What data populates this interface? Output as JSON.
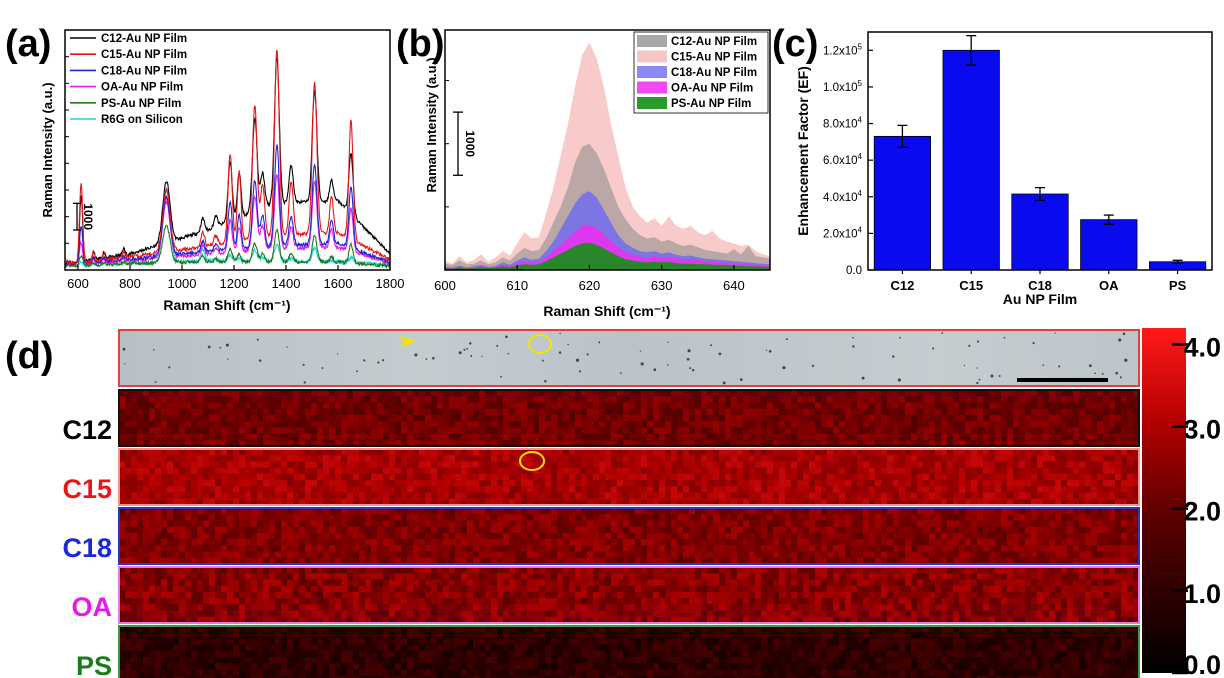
{
  "panel_labels": [
    "(a)",
    "(b)",
    "(c)",
    "(d)"
  ],
  "colors": {
    "C12": "#000000",
    "C15": "#e8161b",
    "C18": "#1b28d6",
    "OA": "#e619e6",
    "PS": "#1e7a1e",
    "R6G": "#18d8d8",
    "bar": "#0a0af0",
    "map_border_optical": "#e33f3f",
    "map_border_C12": "#111111",
    "map_border_C15": "#f29090",
    "map_border_C18": "#2a34c8",
    "map_border_OA": "#e07ae0",
    "map_border_PS": "#3c9a3c",
    "annotation": "#f2e600"
  },
  "chart_data": [
    {
      "panel": "(a)",
      "type": "line",
      "xlabel": "Raman Shift (cm⁻¹)",
      "ylabel": "Raman Intensity (a.u.)",
      "xlim": [
        550,
        1800
      ],
      "xticks": [
        "600",
        "800",
        "1000",
        "1200",
        "1400",
        "1600",
        "1800"
      ],
      "xtick_values": [
        600,
        800,
        1000,
        1200,
        1400,
        1600,
        1800
      ],
      "ylim": [
        0,
        9000
      ],
      "scale_bar_label": "1000",
      "scale_bar_value": 1000,
      "legend": [
        "C12-Au NP Film",
        "C15-Au NP Film",
        "C18-Au NP Film",
        "OA-Au NP Film",
        "PS-Au NP Film",
        "R6G on Silicon"
      ],
      "peaks": [
        560,
        612,
        660,
        700,
        775,
        940,
        1080,
        1130,
        1185,
        1220,
        1280,
        1310,
        1365,
        1420,
        1510,
        1575,
        1650
      ],
      "peak_width": [
        10,
        6,
        5,
        5,
        5,
        14,
        7,
        7,
        8,
        7,
        9,
        8,
        9,
        8,
        9,
        7,
        8
      ],
      "series": [
        {
          "name": "C12-Au NP Film",
          "color_key": "C12",
          "baseline": [
            200,
            600,
            1500,
            2500,
            2600,
            600
          ],
          "amplitudes": [
            100,
            2500,
            300,
            250,
            250,
            2300,
            500,
            400,
            2200,
            1700,
            3500,
            1300,
            5500,
            1400,
            4200,
            800,
            2300
          ]
        },
        {
          "name": "C15-Au NP Film",
          "color_key": "C15",
          "baseline": [
            200,
            500,
            900,
            1300,
            1400,
            400
          ],
          "amplitudes": [
            80,
            3000,
            300,
            250,
            200,
            2300,
            550,
            350,
            3300,
            2600,
            5000,
            2000,
            7000,
            2000,
            5700,
            1400,
            4500
          ]
        },
        {
          "name": "C18-Au NP Film",
          "color_key": "C18",
          "baseline": [
            200,
            400,
            700,
            900,
            1000,
            300
          ],
          "amplitudes": [
            60,
            1400,
            200,
            150,
            150,
            2200,
            400,
            250,
            1800,
            1300,
            2500,
            1200,
            3800,
            1100,
            3000,
            900,
            2300
          ]
        },
        {
          "name": "OA-Au NP Film",
          "color_key": "OA",
          "baseline": [
            200,
            350,
            600,
            800,
            850,
            250
          ],
          "amplitudes": [
            50,
            800,
            150,
            120,
            120,
            2100,
            350,
            200,
            1200,
            900,
            2000,
            900,
            2800,
            800,
            2500,
            700,
            1600
          ]
        },
        {
          "name": "PS-Au NP Film",
          "color_key": "PS",
          "baseline": [
            150,
            250,
            300,
            300,
            300,
            150
          ],
          "amplitudes": [
            40,
            350,
            80,
            60,
            60,
            1400,
            250,
            120,
            500,
            300,
            700,
            300,
            1200,
            300,
            1000,
            200,
            700
          ]
        },
        {
          "name": "R6G on Silicon",
          "color_key": "R6G",
          "baseline": [
            150,
            250,
            350,
            350,
            300,
            200
          ],
          "amplitudes": [
            80,
            150,
            50,
            40,
            40,
            2700,
            450,
            60,
            200,
            100,
            400,
            100,
            600,
            100,
            500,
            60,
            200
          ]
        }
      ]
    },
    {
      "panel": "(b)",
      "type": "area",
      "xlabel": "Raman Shift (cm⁻¹)",
      "ylabel": "Raman Intensity (a.u.)",
      "xlim": [
        600,
        645
      ],
      "xticks": [
        "600",
        "610",
        "620",
        "630",
        "640"
      ],
      "xtick_values": [
        600,
        610,
        620,
        630,
        640
      ],
      "ylim": [
        0,
        3800
      ],
      "scale_bar_label": "1000",
      "scale_bar_value": 1000,
      "legend": [
        "C12-Au NP Film",
        "C15-Au NP Film",
        "C18-Au NP Film",
        "OA-Au NP Film",
        "PS-Au NP Film"
      ],
      "x": [
        600,
        601,
        602,
        603,
        604,
        605,
        606,
        607,
        608,
        609,
        610,
        611,
        612,
        613,
        614,
        615,
        616,
        617,
        618,
        619,
        620,
        621,
        622,
        623,
        624,
        625,
        626,
        627,
        628,
        629,
        630,
        631,
        632,
        633,
        634,
        635,
        636,
        637,
        638,
        639,
        640,
        641,
        642,
        643,
        644,
        645
      ],
      "series": [
        {
          "name": "C15-Au NP Film",
          "color_key": "C15",
          "fill": "#f5b8b8",
          "opacity": 0.75,
          "values": [
            150,
            100,
            220,
            120,
            160,
            250,
            130,
            200,
            300,
            230,
            420,
            600,
            500,
            520,
            900,
            1300,
            1800,
            2300,
            2900,
            3400,
            3600,
            3350,
            2900,
            2300,
            1800,
            1300,
            1000,
            850,
            750,
            820,
            700,
            850,
            700,
            650,
            700,
            600,
            550,
            620,
            500,
            450,
            420,
            380,
            400,
            300,
            250,
            220
          ]
        },
        {
          "name": "C12-Au NP Film",
          "color_key": "C12",
          "fill": "#8a8a8a",
          "opacity": 0.55,
          "values": [
            100,
            80,
            150,
            90,
            100,
            150,
            90,
            120,
            200,
            150,
            260,
            350,
            300,
            320,
            500,
            750,
            1000,
            1300,
            1700,
            1950,
            2000,
            1850,
            1600,
            1300,
            1000,
            800,
            650,
            550,
            500,
            520,
            450,
            480,
            420,
            380,
            400,
            360,
            320,
            300,
            280,
            260,
            330,
            250,
            380,
            220,
            200,
            180
          ]
        },
        {
          "name": "C18-Au NP Film",
          "color_key": "C18",
          "fill": "#6a6af0",
          "opacity": 0.8,
          "values": [
            50,
            40,
            70,
            40,
            60,
            80,
            50,
            60,
            120,
            80,
            150,
            200,
            160,
            180,
            300,
            450,
            650,
            850,
            1050,
            1200,
            1250,
            1150,
            950,
            750,
            550,
            420,
            350,
            300,
            280,
            300,
            260,
            280,
            240,
            220,
            230,
            200,
            180,
            170,
            160,
            150,
            140,
            130,
            120,
            110,
            100,
            90
          ]
        },
        {
          "name": "OA-Au NP Film",
          "color_key": "OA",
          "fill": "#f02ef0",
          "opacity": 0.85,
          "values": [
            40,
            30,
            50,
            30,
            40,
            60,
            40,
            50,
            80,
            60,
            100,
            140,
            120,
            130,
            200,
            300,
            400,
            500,
            600,
            700,
            720,
            660,
            560,
            460,
            360,
            280,
            240,
            210,
            200,
            220,
            200,
            210,
            190,
            170,
            170,
            160,
            140,
            130,
            120,
            110,
            100,
            95,
            90,
            85,
            80,
            75
          ]
        },
        {
          "name": "PS-Au NP Film",
          "color_key": "PS",
          "fill": "#1f8a1f",
          "opacity": 0.95,
          "values": [
            30,
            20,
            40,
            25,
            30,
            45,
            30,
            40,
            60,
            45,
            70,
            90,
            80,
            90,
            140,
            200,
            260,
            320,
            380,
            420,
            430,
            400,
            340,
            280,
            220,
            170,
            150,
            130,
            120,
            130,
            120,
            130,
            110,
            100,
            100,
            95,
            90,
            85,
            80,
            75,
            70,
            65,
            60,
            55,
            50,
            45
          ]
        }
      ]
    },
    {
      "panel": "(c)",
      "type": "bar",
      "xlabel": "Au NP Film",
      "ylabel": "Enhancement Factor (EF)",
      "categories": [
        "C12",
        "C15",
        "C18",
        "OA",
        "PS"
      ],
      "values": [
        73000,
        120000,
        41500,
        27500,
        4500
      ],
      "errors": [
        6000,
        8000,
        3500,
        2500,
        800
      ],
      "ylim": [
        0,
        130000
      ],
      "ytick_values": [
        0,
        20000,
        40000,
        60000,
        80000,
        100000,
        120000
      ],
      "yticks": [
        {
          "mantissa": "0.0",
          "exp": ""
        },
        {
          "mantissa": "2.0x10",
          "exp": "4"
        },
        {
          "mantissa": "4.0x10",
          "exp": "4"
        },
        {
          "mantissa": "6.0x10",
          "exp": "4"
        },
        {
          "mantissa": "8.0x10",
          "exp": "4"
        },
        {
          "mantissa": "1.0x10",
          "exp": "5"
        },
        {
          "mantissa": "1.2x10",
          "exp": "5"
        }
      ]
    },
    {
      "panel": "(d)",
      "type": "heatmap",
      "row_labels": [
        "C12",
        "C15",
        "C18",
        "OA",
        "PS"
      ],
      "row_means": [
        2.2,
        2.9,
        2.4,
        2.5,
        1.0
      ],
      "row_spread": [
        0.28,
        0.28,
        0.3,
        0.35,
        0.32
      ],
      "row_border_keys": [
        "map_border_C12",
        "map_border_C15",
        "map_border_C18",
        "map_border_OA",
        "map_border_PS"
      ],
      "colorbar_min": 0.0,
      "colorbar_max": 4.2,
      "colorbar_ticks": [
        "0.0",
        "1.0",
        "2.0",
        "3.0",
        "4.0"
      ],
      "colorbar_tick_values": [
        0,
        1,
        2,
        3,
        4
      ],
      "has_optical_image": true,
      "has_scale_bar": true
    }
  ]
}
